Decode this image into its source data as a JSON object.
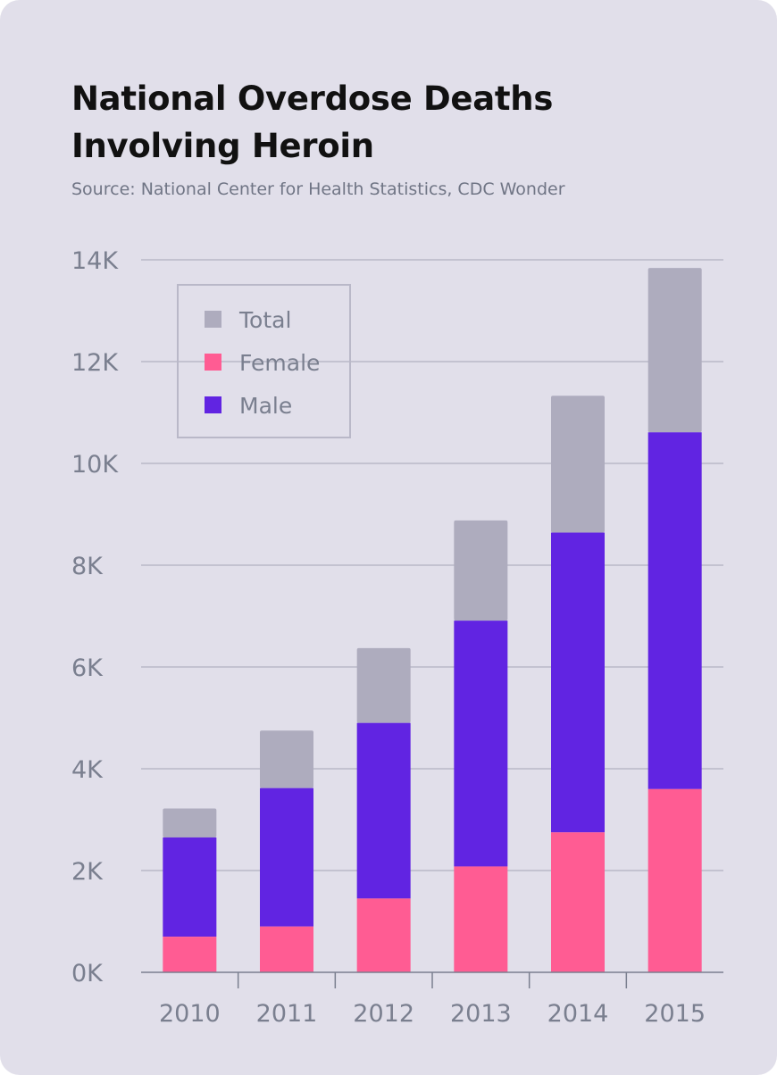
{
  "chart_data": {
    "type": "bar",
    "stacked": true,
    "title": "National Overdose Deaths Involving Heroin",
    "subtitle": "Source: National Center for Health Statistics, CDC Wonder",
    "categories": [
      "2010",
      "2011",
      "2012",
      "2013",
      "2014",
      "2015"
    ],
    "series": [
      {
        "name": "Female",
        "color": "#ff5c93",
        "values": [
          700,
          900,
          1450,
          2080,
          2750,
          3600
        ]
      },
      {
        "name": "Male",
        "color": "#6124e2",
        "values": [
          1950,
          2720,
          3450,
          4830,
          5890,
          7010
        ]
      },
      {
        "name": "Total",
        "color": "#aeacbe",
        "values": [
          3220,
          4750,
          6370,
          8880,
          11330,
          13840
        ]
      }
    ],
    "legend_order": [
      "Total",
      "Female",
      "Male"
    ],
    "legend_position": "top-left",
    "ylim": [
      0,
      14000
    ],
    "yticks": [
      0,
      2000,
      4000,
      6000,
      8000,
      10000,
      12000,
      14000
    ],
    "ytick_labels": [
      "0K",
      "2K",
      "4K",
      "6K",
      "8K",
      "10K",
      "12K",
      "14K"
    ],
    "grid": true
  }
}
